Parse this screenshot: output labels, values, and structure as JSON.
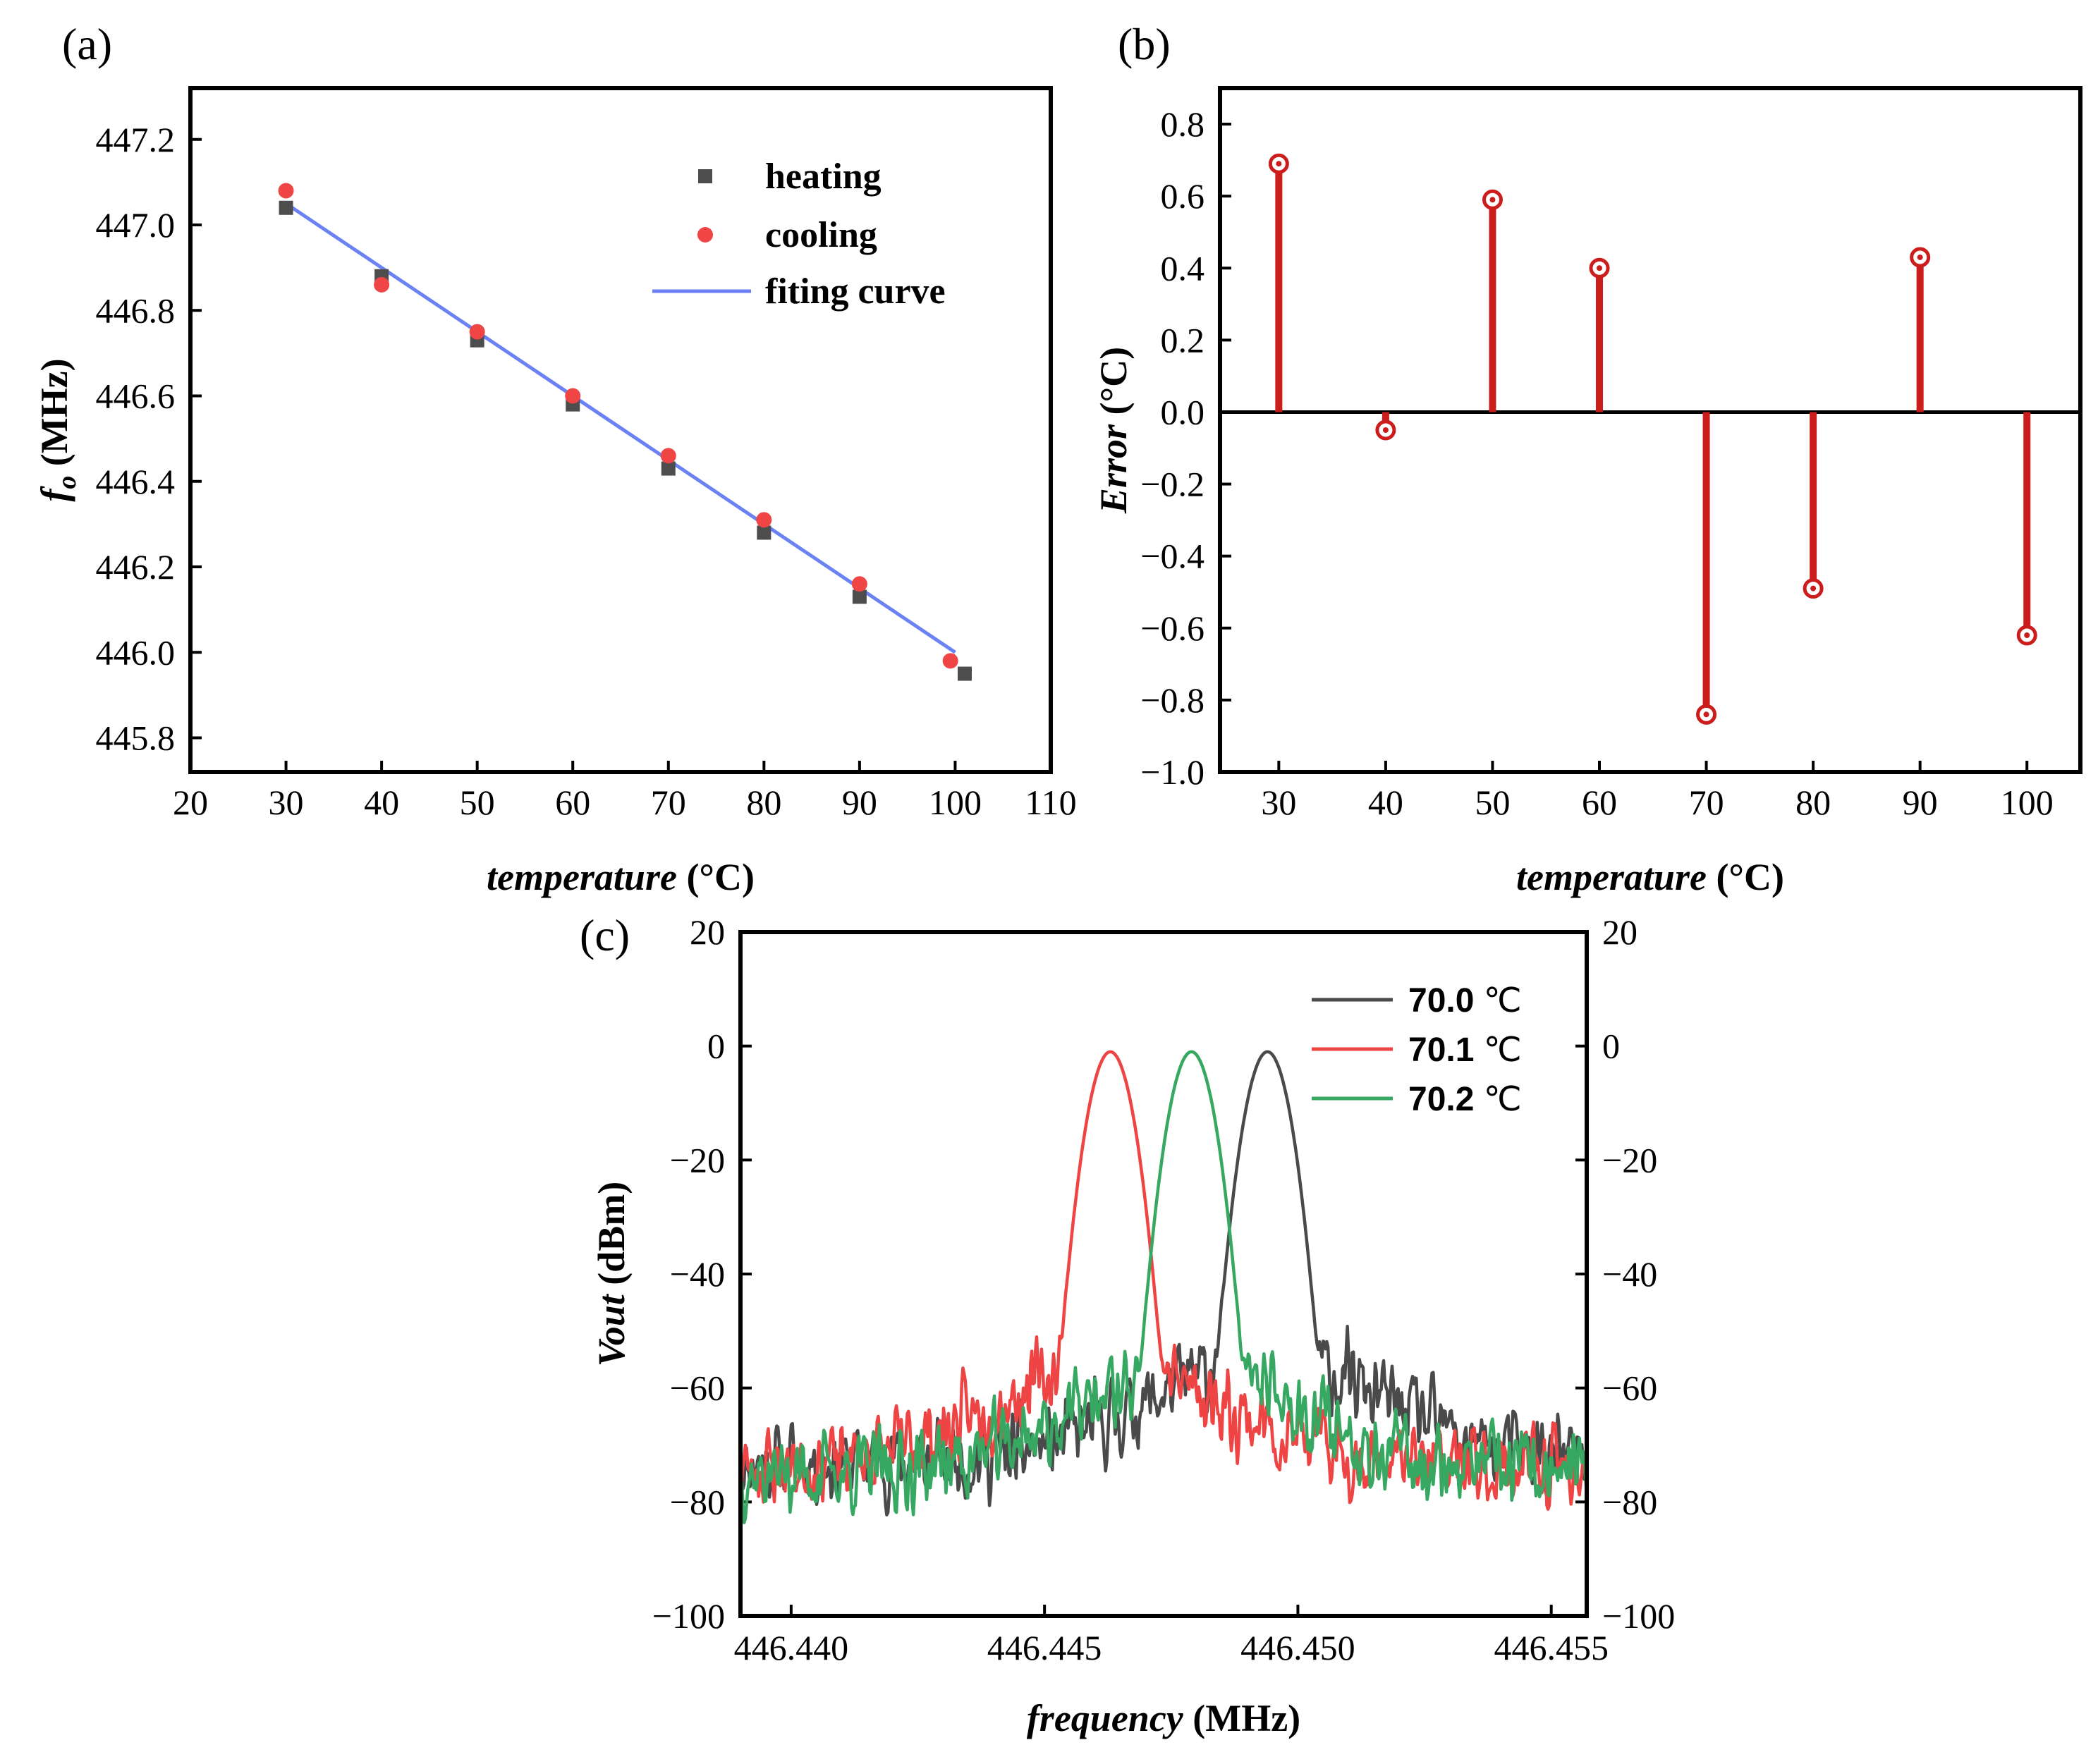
{
  "panels": {
    "a": {
      "tag": "(a)"
    },
    "b": {
      "tag": "(b)"
    },
    "c": {
      "tag": "(c)"
    }
  },
  "chart_data": [
    {
      "id": "a",
      "type": "scatter",
      "xlabel": {
        "italic": "temperature",
        "rest": " (°C)"
      },
      "ylabel": {
        "italic": "f",
        "sub": "o",
        "rest": " (MHz)"
      },
      "xlim": [
        20,
        110
      ],
      "ylim": [
        445.72,
        447.32
      ],
      "xticks": [
        20,
        30,
        40,
        50,
        60,
        70,
        80,
        90,
        100,
        110
      ],
      "yticks": [
        445.8,
        446.0,
        446.2,
        446.4,
        446.6,
        446.8,
        447.0,
        447.2
      ],
      "series": [
        {
          "name": "heating",
          "marker": "square",
          "color": "#4d4d4d",
          "x": [
            30,
            40,
            50,
            60,
            70,
            80,
            90,
            101
          ],
          "y": [
            447.04,
            446.88,
            446.73,
            446.58,
            446.43,
            446.28,
            446.13,
            445.95
          ]
        },
        {
          "name": "cooling",
          "marker": "circle",
          "color": "#f04545",
          "x": [
            30,
            40,
            50,
            60,
            70,
            80,
            90,
            99.5
          ],
          "y": [
            447.08,
            446.86,
            446.75,
            446.6,
            446.46,
            446.31,
            446.16,
            445.98
          ]
        },
        {
          "name": "fiting curve",
          "marker": "line",
          "color": "#6b82f5",
          "x": [
            30,
            100
          ],
          "y": [
            447.05,
            446.0
          ]
        }
      ],
      "legend": "top-right"
    },
    {
      "id": "b",
      "type": "stem",
      "xlabel": {
        "italic": "temperature",
        "rest": " (°C)"
      },
      "ylabel": {
        "italic": "Error",
        "rest": " (°C)"
      },
      "xlim": [
        24.5,
        105
      ],
      "ylim": [
        -1.0,
        0.9
      ],
      "xticks": [
        30,
        40,
        50,
        60,
        70,
        80,
        90,
        100
      ],
      "yticks": [
        -1.0,
        -0.8,
        -0.6,
        -0.4,
        -0.2,
        0.0,
        0.2,
        0.4,
        0.6,
        0.8
      ],
      "series": [
        {
          "color": "#cc1d1d",
          "x": [
            30,
            40,
            50,
            60,
            70,
            80,
            90,
            100
          ],
          "y": [
            0.69,
            -0.05,
            0.59,
            0.4,
            -0.84,
            -0.49,
            0.43,
            -0.62
          ]
        }
      ]
    },
    {
      "id": "c",
      "type": "line",
      "xlabel": {
        "italic": "frequency",
        "rest": " (MHz)"
      },
      "ylabel": {
        "italic": "Vout",
        "rest": " (dBm)"
      },
      "xlim": [
        446.439,
        446.4557
      ],
      "ylim": [
        -100,
        20
      ],
      "xticks": [
        446.44,
        446.445,
        446.45,
        446.455
      ],
      "xtick_labels": [
        "446.440",
        "446.445",
        "446.450",
        "446.455"
      ],
      "yticks": [
        -100,
        -80,
        -60,
        -40,
        -20,
        0,
        20
      ],
      "series": [
        {
          "name": "70.0",
          "unit": "℃",
          "color": "#4a4a4a",
          "peak": 446.4494,
          "width": 0.00028,
          "level": -73,
          "seed": 11
        },
        {
          "name": "70.1",
          "unit": "℃",
          "color": "#ef4444",
          "peak": 446.4463,
          "width": 0.00028,
          "level": -74,
          "seed": 23
        },
        {
          "name": "70.2",
          "unit": "℃",
          "color": "#36a862",
          "peak": 446.4479,
          "width": 0.00028,
          "level": -75,
          "seed": 37
        }
      ],
      "legend": "top-right"
    }
  ]
}
